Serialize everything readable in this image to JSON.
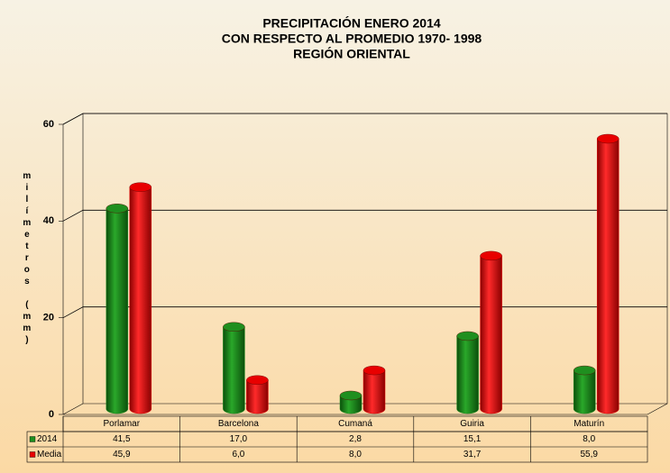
{
  "chart_data": {
    "type": "bar",
    "title": [
      "PRECIPITACIÓN ENERO 2014",
      "CON RESPECTO AL PROMEDIO 1970- 1998",
      "REGIÓN ORIENTAL"
    ],
    "y_label": "milímetros (mm)",
    "categories": [
      "Porlamar",
      "Barcelona",
      "Cumaná",
      "Guiria",
      "Maturín"
    ],
    "series": [
      {
        "name": "2014",
        "color": "#1f8f1f",
        "values": [
          41.5,
          17.0,
          2.8,
          15.1,
          8.0
        ],
        "value_labels": [
          "41,5",
          "17,0",
          "2,8",
          "15,1",
          "8,0"
        ]
      },
      {
        "name": "Media",
        "color": "#e80000",
        "values": [
          45.9,
          6.0,
          8.0,
          31.7,
          55.9
        ],
        "value_labels": [
          "45,9",
          "6,0",
          "8,0",
          "31,7",
          "55,9"
        ]
      }
    ],
    "ylim": [
      0,
      60
    ],
    "yticks": [
      0,
      20,
      40,
      60
    ],
    "grid": true
  }
}
